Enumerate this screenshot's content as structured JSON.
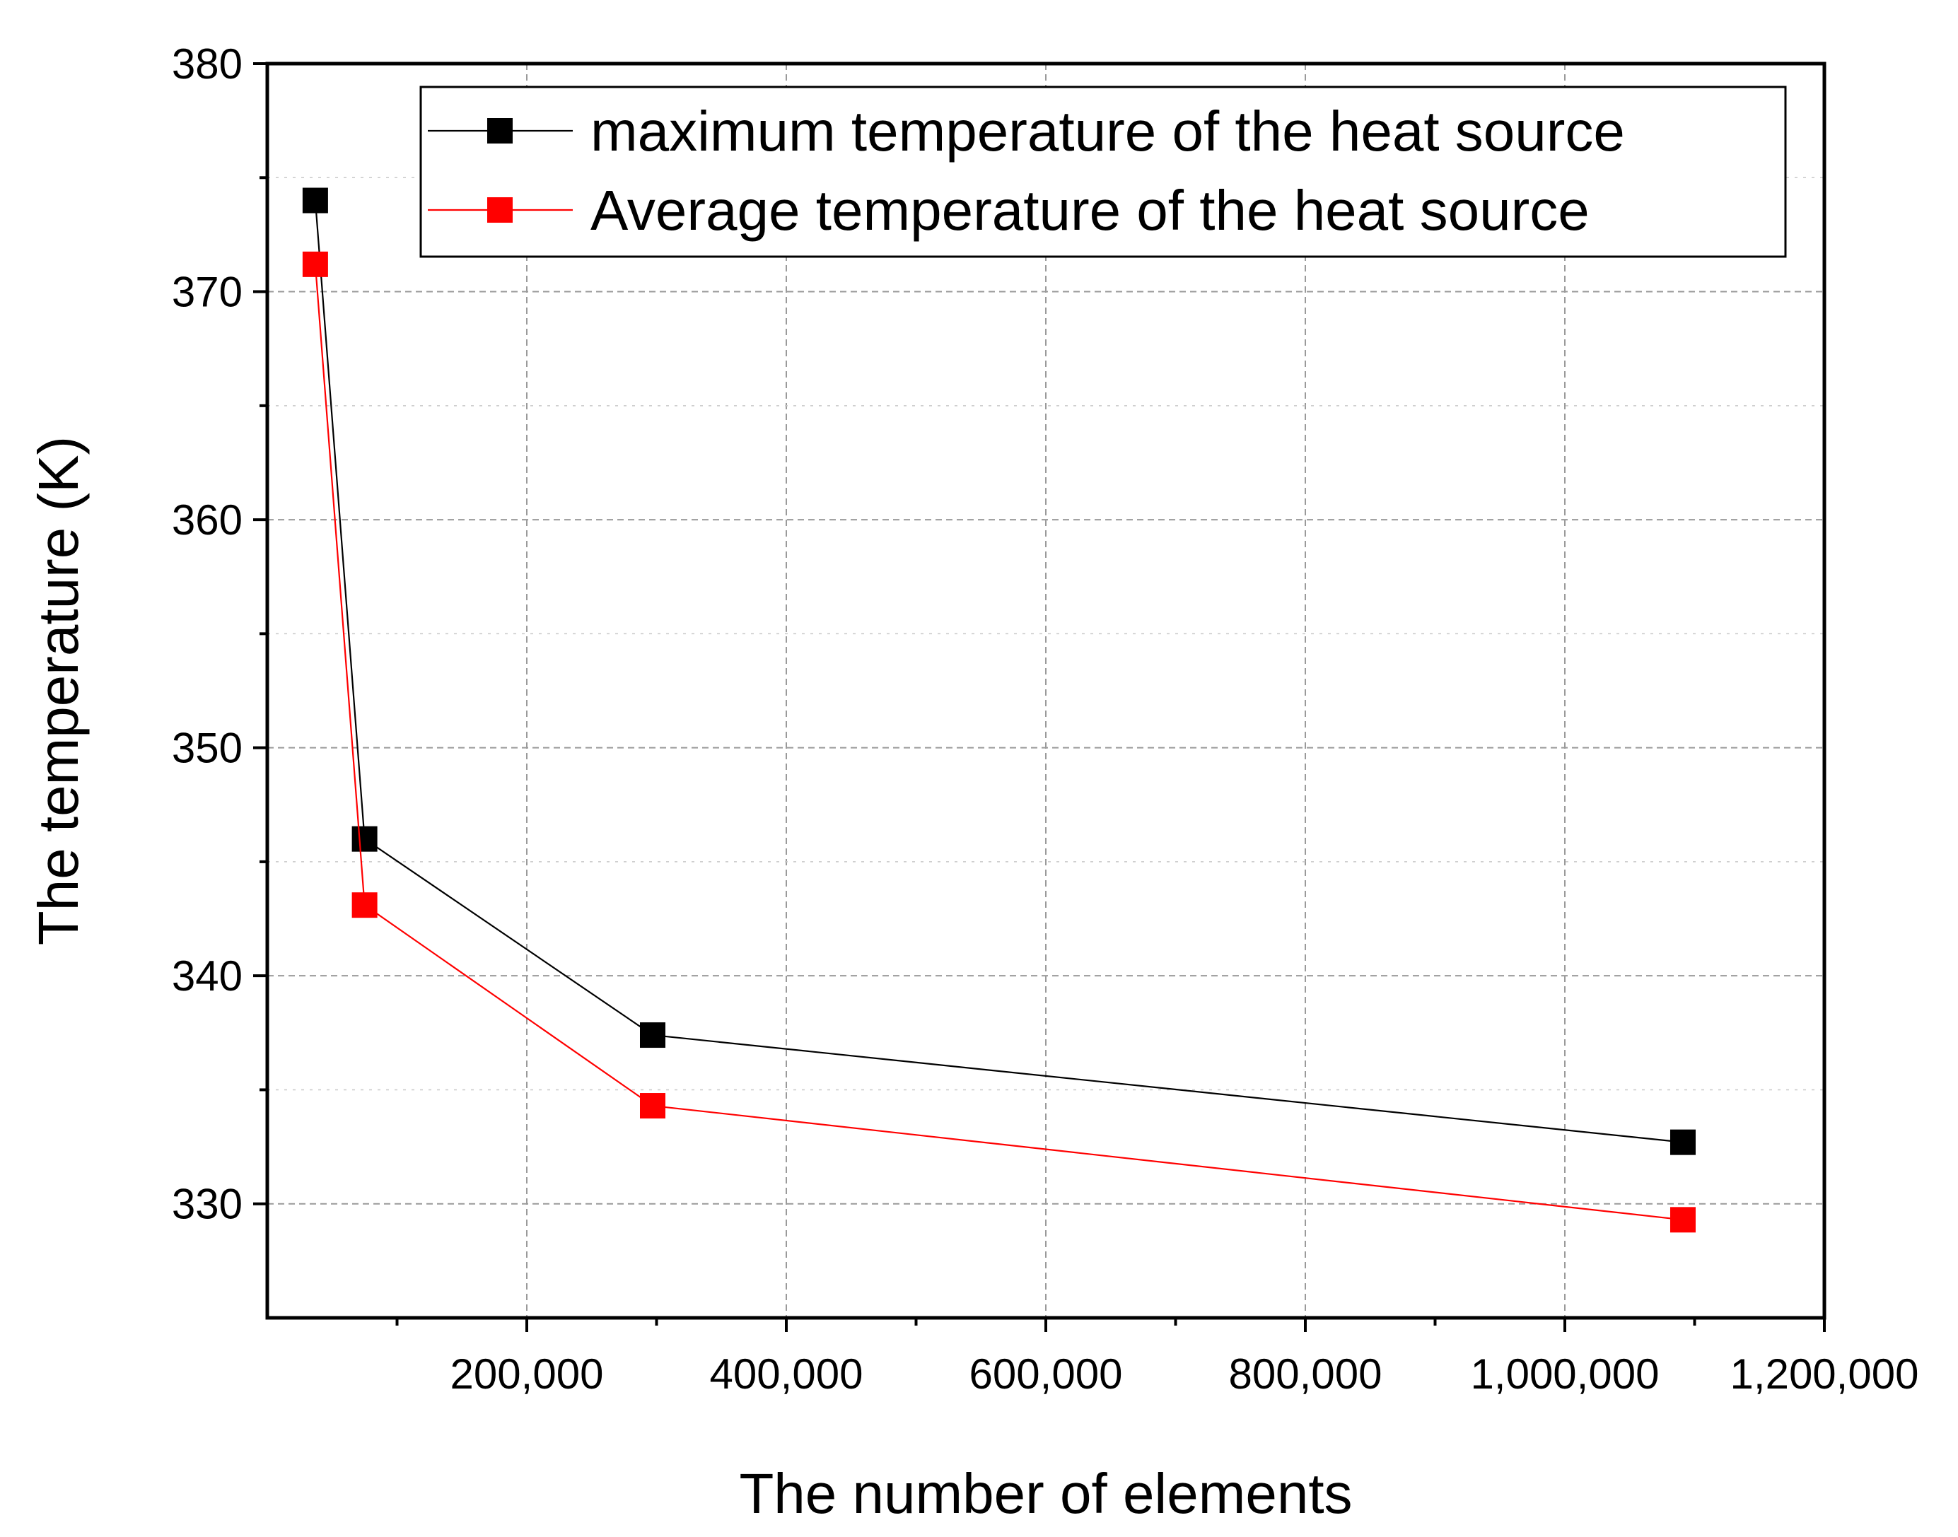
{
  "chart_data": {
    "type": "line",
    "title": "",
    "xlabel": "The number of elements",
    "ylabel": "The temperature (K)",
    "xlim": [
      0,
      1200000
    ],
    "ylim": [
      325,
      380
    ],
    "xticks": [
      {
        "value": 200000,
        "label": "200,000"
      },
      {
        "value": 400000,
        "label": "400,000"
      },
      {
        "value": 600000,
        "label": "600,000"
      },
      {
        "value": 800000,
        "label": "800,000"
      },
      {
        "value": 1000000,
        "label": "1,000,000"
      },
      {
        "value": 1200000,
        "label": "1,200,000"
      }
    ],
    "x_minor_ticks": [
      100000,
      300000,
      500000,
      700000,
      900000,
      1100000
    ],
    "yticks": [
      {
        "value": 330,
        "label": "330"
      },
      {
        "value": 340,
        "label": "340"
      },
      {
        "value": 350,
        "label": "350"
      },
      {
        "value": 360,
        "label": "360"
      },
      {
        "value": 370,
        "label": "370"
      },
      {
        "value": 380,
        "label": "380"
      }
    ],
    "y_minor_ticks": [
      335,
      345,
      355,
      365,
      375
    ],
    "grid": true,
    "legend_position": "top-right",
    "series": [
      {
        "name": "maximum temperature of the heat source",
        "color": "#000000",
        "marker": "square",
        "x": [
          37000,
          75000,
          297000,
          1091000
        ],
        "y": [
          374.0,
          346.0,
          337.4,
          332.7
        ]
      },
      {
        "name": "Average temperature of the heat source",
        "color": "#ff0000",
        "marker": "square",
        "x": [
          37000,
          75000,
          297000,
          1091000
        ],
        "y": [
          371.2,
          343.1,
          334.3,
          329.3
        ]
      }
    ]
  }
}
